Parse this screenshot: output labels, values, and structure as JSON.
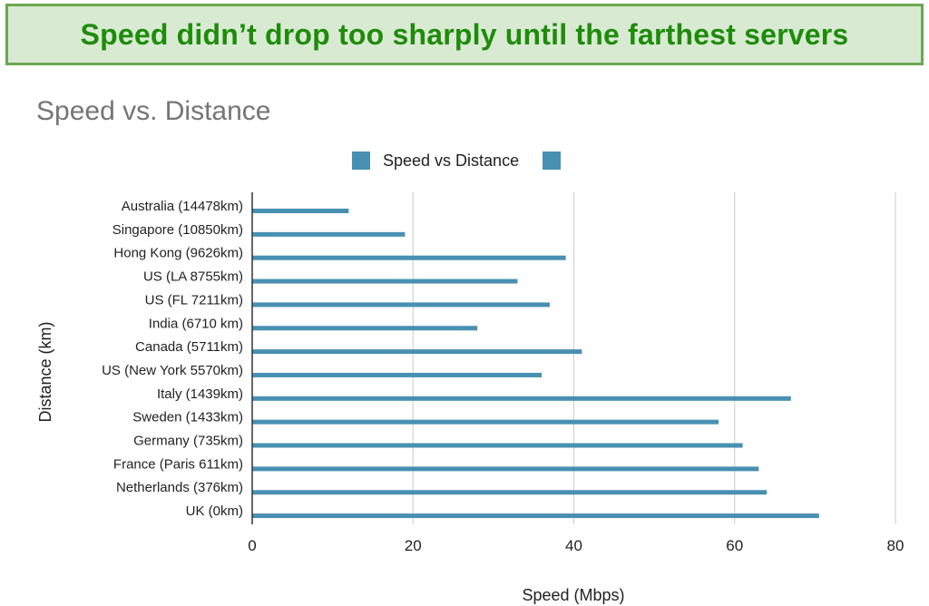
{
  "banner": {
    "text": "Speed didn’t drop too sharply until the farthest servers"
  },
  "chart_data": {
    "type": "bar",
    "orientation": "horizontal",
    "title": "Speed vs. Distance",
    "xlabel": "Speed (Mbps)",
    "ylabel": "Distance (km)",
    "xlim": [
      0,
      80
    ],
    "x_ticks": [
      0,
      20,
      40,
      60,
      80
    ],
    "grid": true,
    "legend_position": "top-center",
    "legend": [
      {
        "label": "Speed vs Distance",
        "color": "#4890b2"
      },
      {
        "label": "",
        "color": "#4890b2"
      }
    ],
    "bar_color": "#4890b2",
    "categories": [
      "Australia (14478km)",
      "Singapore (10850km)",
      "Hong Kong (9626km)",
      "US (LA 8755km)",
      "US (FL 7211km)",
      "India (6710 km)",
      "Canada (5711km)",
      "US (New York 5570km)",
      "Italy (1439km)",
      "Sweden (1433km)",
      "Germany (735km)",
      "France (Paris 611km)",
      "Netherlands (376km)",
      "UK (0km)"
    ],
    "values": [
      12,
      19,
      39,
      33,
      37,
      28,
      41,
      36,
      67,
      58,
      61,
      63,
      64,
      70.5
    ]
  }
}
